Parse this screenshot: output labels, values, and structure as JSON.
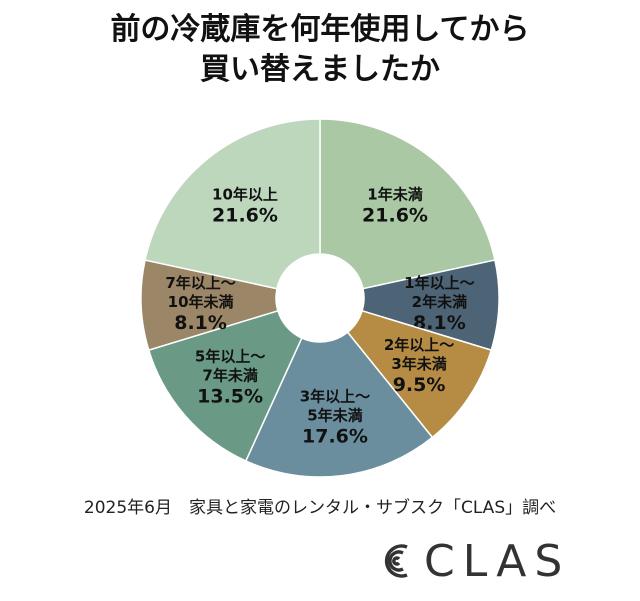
{
  "title": {
    "line1": "前の冷蔵庫を何年使用してから",
    "line2": "買い替えましたか"
  },
  "chart_data": {
    "type": "pie",
    "donut": true,
    "slices": [
      {
        "label_lines": [
          "1年未満"
        ],
        "value": 21.6,
        "value_label": "21.6%",
        "color": "#a9c8a3"
      },
      {
        "label_lines": [
          "1年以上～",
          "2年未満"
        ],
        "value": 8.1,
        "value_label": "8.1%",
        "color": "#4d6476"
      },
      {
        "label_lines": [
          "2年以上～",
          "3年未満"
        ],
        "value": 9.5,
        "value_label": "9.5%",
        "color": "#b68c45"
      },
      {
        "label_lines": [
          "3年以上～",
          "5年未満"
        ],
        "value": 17.6,
        "value_label": "17.6%",
        "color": "#6b8e9e"
      },
      {
        "label_lines": [
          "5年以上～",
          "7年未満"
        ],
        "value": 13.5,
        "value_label": "13.5%",
        "color": "#6a9a86"
      },
      {
        "label_lines": [
          "7年以上～",
          "10年未満"
        ],
        "value": 8.1,
        "value_label": "8.1%",
        "color": "#9b8667"
      },
      {
        "label_lines": [
          "10年以上"
        ],
        "value": 21.6,
        "value_label": "21.6%",
        "color": "#bdd7bd"
      }
    ]
  },
  "source": "2025年6月　家具と家電のレンタル・サブスク「CLAS」調べ",
  "brand": {
    "name": "CLAS",
    "icon": "clas-logo-icon"
  }
}
